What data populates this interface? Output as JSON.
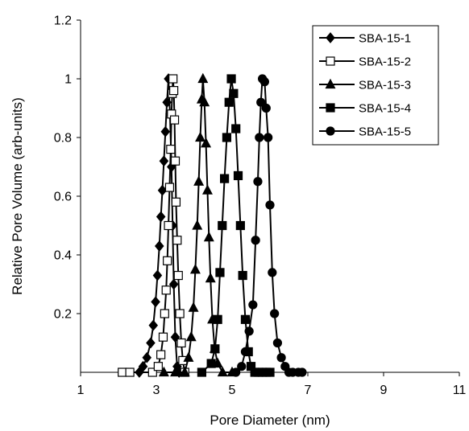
{
  "chart_data": {
    "type": "line",
    "title": "",
    "xlabel": "Pore Diameter (nm)",
    "ylabel": "Relative Pore Volume (arb-units)",
    "xlim": [
      1,
      11
    ],
    "ylim": [
      0,
      1.2
    ],
    "xticks": [
      "1",
      "3",
      "5",
      "7",
      "9",
      "11"
    ],
    "yticks": [
      "0.2",
      "0.4",
      "0.6",
      "0.8",
      "1",
      "1.2"
    ],
    "legend_position": "top-right",
    "grid": false,
    "series": [
      {
        "name": "SBA-15-1",
        "marker": "diamond",
        "fill": "#000000",
        "points": [
          [
            2.55,
            0.0
          ],
          [
            2.65,
            0.02
          ],
          [
            2.75,
            0.05
          ],
          [
            2.85,
            0.1
          ],
          [
            2.92,
            0.16
          ],
          [
            2.98,
            0.24
          ],
          [
            3.03,
            0.33
          ],
          [
            3.08,
            0.43
          ],
          [
            3.12,
            0.53
          ],
          [
            3.16,
            0.62
          ],
          [
            3.2,
            0.72
          ],
          [
            3.24,
            0.82
          ],
          [
            3.28,
            0.92
          ],
          [
            3.32,
            1.0
          ],
          [
            3.36,
            0.88
          ],
          [
            3.4,
            0.7
          ],
          [
            3.43,
            0.5
          ],
          [
            3.46,
            0.3
          ],
          [
            3.5,
            0.12
          ],
          [
            3.55,
            0.02
          ],
          [
            3.6,
            0.0
          ]
        ]
      },
      {
        "name": "SBA-15-2",
        "marker": "square",
        "fill": "#ffffff",
        "points": [
          [
            2.1,
            0.0
          ],
          [
            2.3,
            0.0
          ],
          [
            2.9,
            0.0
          ],
          [
            3.05,
            0.02
          ],
          [
            3.12,
            0.06
          ],
          [
            3.18,
            0.12
          ],
          [
            3.22,
            0.2
          ],
          [
            3.26,
            0.28
          ],
          [
            3.29,
            0.38
          ],
          [
            3.32,
            0.5
          ],
          [
            3.35,
            0.63
          ],
          [
            3.38,
            0.76
          ],
          [
            3.4,
            0.88
          ],
          [
            3.42,
            0.95
          ],
          [
            3.44,
            1.0
          ],
          [
            3.46,
            0.96
          ],
          [
            3.48,
            0.86
          ],
          [
            3.5,
            0.72
          ],
          [
            3.52,
            0.58
          ],
          [
            3.55,
            0.45
          ],
          [
            3.58,
            0.33
          ],
          [
            3.62,
            0.2
          ],
          [
            3.66,
            0.1
          ],
          [
            3.7,
            0.04
          ],
          [
            3.75,
            0.0
          ]
        ]
      },
      {
        "name": "SBA-15-3",
        "marker": "triangle",
        "fill": "#000000",
        "points": [
          [
            3.2,
            0.0
          ],
          [
            3.5,
            0.0
          ],
          [
            3.75,
            0.0
          ],
          [
            3.85,
            0.05
          ],
          [
            3.92,
            0.12
          ],
          [
            3.98,
            0.22
          ],
          [
            4.03,
            0.35
          ],
          [
            4.08,
            0.5
          ],
          [
            4.12,
            0.65
          ],
          [
            4.16,
            0.8
          ],
          [
            4.2,
            0.93
          ],
          [
            4.23,
            1.0
          ],
          [
            4.27,
            0.92
          ],
          [
            4.31,
            0.78
          ],
          [
            4.35,
            0.62
          ],
          [
            4.39,
            0.46
          ],
          [
            4.43,
            0.32
          ],
          [
            4.48,
            0.18
          ],
          [
            4.54,
            0.08
          ],
          [
            4.62,
            0.03
          ],
          [
            4.75,
            0.0
          ],
          [
            5.0,
            0.0
          ]
        ]
      },
      {
        "name": "SBA-15-4",
        "marker": "square",
        "fill": "#000000",
        "points": [
          [
            4.2,
            0.0
          ],
          [
            4.45,
            0.03
          ],
          [
            4.55,
            0.08
          ],
          [
            4.62,
            0.18
          ],
          [
            4.68,
            0.34
          ],
          [
            4.74,
            0.5
          ],
          [
            4.8,
            0.66
          ],
          [
            4.86,
            0.8
          ],
          [
            4.92,
            0.92
          ],
          [
            4.98,
            1.0
          ],
          [
            5.04,
            0.95
          ],
          [
            5.1,
            0.83
          ],
          [
            5.16,
            0.67
          ],
          [
            5.22,
            0.5
          ],
          [
            5.28,
            0.33
          ],
          [
            5.35,
            0.18
          ],
          [
            5.43,
            0.07
          ],
          [
            5.5,
            0.02
          ],
          [
            5.6,
            0.0
          ],
          [
            5.7,
            0.0
          ],
          [
            5.8,
            0.0
          ],
          [
            5.9,
            0.0
          ],
          [
            6.0,
            0.0
          ]
        ]
      },
      {
        "name": "SBA-15-5",
        "marker": "circle",
        "fill": "#000000",
        "points": [
          [
            5.1,
            0.0
          ],
          [
            5.25,
            0.02
          ],
          [
            5.35,
            0.07
          ],
          [
            5.45,
            0.14
          ],
          [
            5.55,
            0.23
          ],
          [
            5.62,
            0.45
          ],
          [
            5.68,
            0.65
          ],
          [
            5.72,
            0.8
          ],
          [
            5.76,
            0.92
          ],
          [
            5.8,
            1.0
          ],
          [
            5.86,
            0.99
          ],
          [
            5.9,
            0.9
          ],
          [
            5.95,
            0.8
          ],
          [
            6.0,
            0.57
          ],
          [
            6.06,
            0.34
          ],
          [
            6.12,
            0.2
          ],
          [
            6.2,
            0.1
          ],
          [
            6.3,
            0.05
          ],
          [
            6.4,
            0.02
          ],
          [
            6.5,
            0.0
          ],
          [
            6.6,
            0.0
          ],
          [
            6.75,
            0.0
          ],
          [
            6.85,
            0.0
          ]
        ]
      }
    ]
  }
}
